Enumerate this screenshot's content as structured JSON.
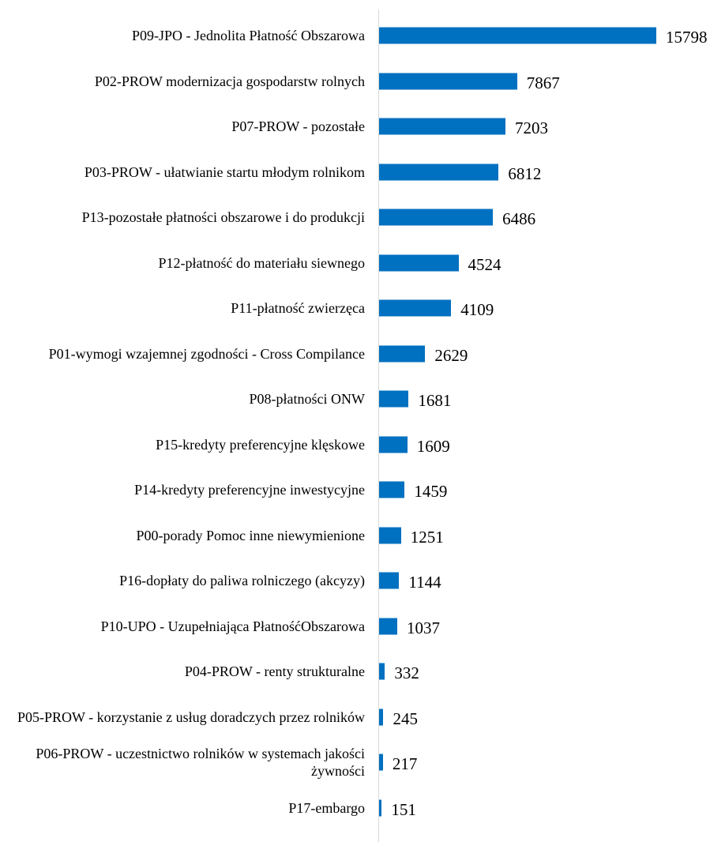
{
  "chart_data": {
    "type": "bar",
    "orientation": "horizontal",
    "color": "#0070c0",
    "categories": [
      "P09-JPO - Jednolita Płatność Obszarowa",
      "P02-PROW modernizacja gospodarstw rolnych",
      "P07-PROW - pozostałe",
      "P03-PROW - ułatwianie startu młodym rolnikom",
      "P13-pozostałe płatności obszarowe i do produkcji",
      "P12-płatność do materiału siewnego",
      "P11-płatność zwierzęca",
      "P01-wymogi wzajemnej zgodności - Cross Compilance",
      "P08-płatności ONW",
      "P15-kredyty preferencyjne klęskowe",
      "P14-kredyty preferencyjne inwestycyjne",
      "P00-porady Pomoc inne niewymienione",
      "P16-dopłaty do paliwa rolniczego (akcyzy)",
      "P10-UPO - Uzupełniająca PłatnośćObszarowa",
      "P04-PROW - renty strukturalne",
      "P05-PROW - korzystanie z usług doradczych przez rolników",
      "P06-PROW - uczestnictwo rolników w systemach jakości żywności",
      "P17-embargo"
    ],
    "values": [
      15798,
      7867,
      7203,
      6812,
      6486,
      4524,
      4109,
      2629,
      1681,
      1609,
      1459,
      1251,
      1144,
      1037,
      332,
      245,
      217,
      151
    ]
  }
}
